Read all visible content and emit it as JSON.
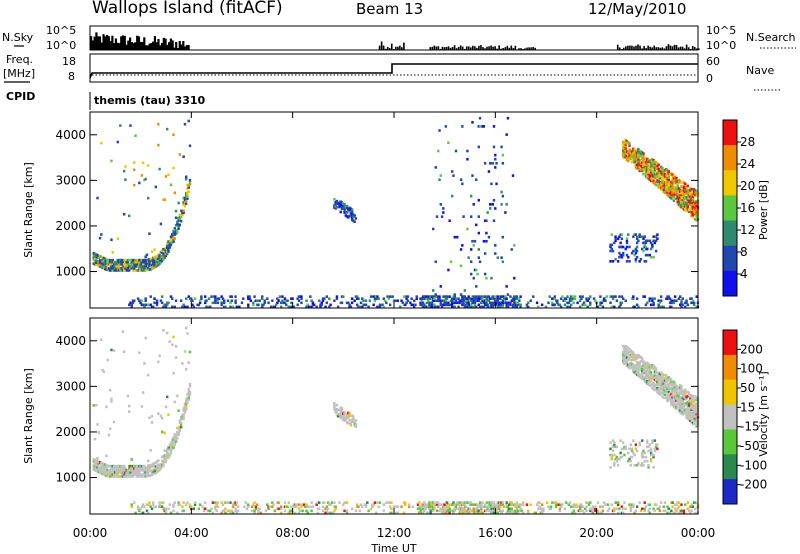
{
  "header": {
    "station": "Wallops Island (fitACF)",
    "beam": "Beam 13",
    "date": "12/May/2010"
  },
  "strips": {
    "nsky_label": "N.Sky",
    "nsearch_label": "N.Search",
    "nsky_ticks": [
      "10^5",
      "10^0"
    ],
    "nsearch_ticks": [
      "10^5",
      "10^0"
    ],
    "freq_label_1": "Freq.",
    "freq_label_2": "[MHz]",
    "freq_ticks": [
      "18",
      "8"
    ],
    "nave_label": "Nave",
    "nave_ticks": [
      "60",
      "0"
    ],
    "cpid_label": "CPID",
    "cpid_value": "themis (tau) 3310"
  },
  "chart_data": [
    {
      "type": "heatmap",
      "name": "power",
      "ylabel": "Slant Range [km]",
      "xlabel": "",
      "y_ticks": [
        "1000",
        "2000",
        "3000",
        "4000"
      ],
      "ylim": [
        200,
        4500
      ],
      "colorbar_label": "Power [dB]",
      "colorbar_ticks": [
        "4",
        "8",
        "12",
        "16",
        "20",
        "24",
        "28"
      ],
      "colorbar_colors": [
        "#1010ee",
        "#2048b0",
        "#2f8a70",
        "#5cc840",
        "#f0c800",
        "#f08c00",
        "#ee1010"
      ],
      "echo_regions": [
        {
          "x0_h": 0.1,
          "x1_h": 3.9,
          "r0_km": 950,
          "r1_km": 4300,
          "shape": "U-arc",
          "level": "mixed"
        },
        {
          "x0_h": 21.0,
          "x1_h": 24.0,
          "r0_km": 2200,
          "r1_km": 3900,
          "shape": "descending-band",
          "level": "high"
        },
        {
          "x0_h": 9.6,
          "x1_h": 10.5,
          "r0_km": 2100,
          "r1_km": 2600,
          "shape": "band",
          "level": "low"
        },
        {
          "x0_h": 20.5,
          "x1_h": 22.4,
          "r0_km": 1200,
          "r1_km": 1800,
          "shape": "patch",
          "level": "low"
        },
        {
          "x0_h": 1.5,
          "x1_h": 24.0,
          "r0_km": 200,
          "r1_km": 450,
          "shape": "ground",
          "level": "low"
        },
        {
          "x0_h": 13.5,
          "x1_h": 16.8,
          "r0_km": 200,
          "r1_km": 4400,
          "shape": "scatter",
          "level": "low"
        }
      ]
    },
    {
      "type": "heatmap",
      "name": "velocity",
      "ylabel": "Slant Range [km]",
      "xlabel": "Time UT",
      "x_ticks": [
        "00:00",
        "04:00",
        "08:00",
        "12:00",
        "16:00",
        "20:00",
        "00:00"
      ],
      "xlim": [
        0,
        24
      ],
      "y_ticks": [
        "1000",
        "2000",
        "3000",
        "4000"
      ],
      "ylim": [
        200,
        4500
      ],
      "colorbar_label": "Velocity [m s⁻¹]",
      "colorbar_ticks": [
        "200",
        "100",
        "50",
        "15",
        "-15",
        "-50",
        "-100",
        "-200"
      ],
      "colorbar_colors": [
        "#1c28c8",
        "#2a8a4e",
        "#58c838",
        "#c0c0c0",
        "#f0c400",
        "#f08c00",
        "#ee1010"
      ],
      "echo_regions": [
        {
          "x0_h": 0.1,
          "x1_h": 3.9,
          "r0_km": 950,
          "r1_km": 4300,
          "shape": "U-arc",
          "level": "mostly-ground"
        },
        {
          "x0_h": 21.0,
          "x1_h": 24.0,
          "r0_km": 2200,
          "r1_km": 3900,
          "shape": "descending-band",
          "level": "mostly-ground"
        },
        {
          "x0_h": 9.6,
          "x1_h": 10.5,
          "r0_km": 2100,
          "r1_km": 2600,
          "shape": "band",
          "level": "mostly-ground"
        },
        {
          "x0_h": 20.5,
          "x1_h": 22.4,
          "r0_km": 1200,
          "r1_km": 1800,
          "shape": "patch",
          "level": "mostly-ground"
        },
        {
          "x0_h": 1.5,
          "x1_h": 24.0,
          "r0_km": 200,
          "r1_km": 450,
          "shape": "ground",
          "level": "mixed"
        }
      ]
    }
  ]
}
